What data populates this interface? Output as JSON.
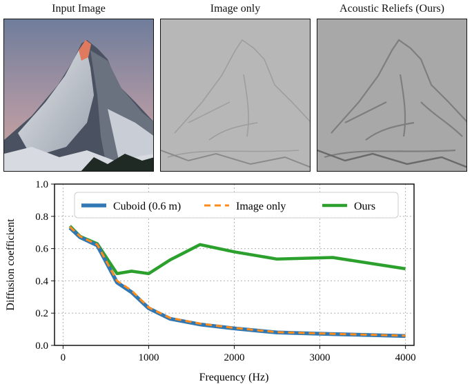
{
  "panels": [
    {
      "title": "Input Image"
    },
    {
      "title": "Image only"
    },
    {
      "title": "Acoustic Reliefs (Ours)"
    }
  ],
  "colors": {
    "cuboid": "#2f78b4",
    "image_only": "#ff8c1a",
    "ours": "#2ca02c",
    "sky_top": "#7d8aa6",
    "sky_bottom": "#cfa6a0",
    "peak_glow": "#e07a5f",
    "relief_light": "#b4b4b4",
    "relief_ours": "#9a9a9a"
  },
  "chart_data": {
    "type": "line",
    "xlabel": "Frequency (Hz)",
    "ylabel": "Diffusion coefficient",
    "xlim": [
      -100,
      4100
    ],
    "ylim": [
      0,
      1.0
    ],
    "xticks": [
      0,
      1000,
      2000,
      3000,
      4000
    ],
    "yticks": [
      0.0,
      0.2,
      0.4,
      0.6,
      0.8,
      1.0
    ],
    "grid": true,
    "legend_position": "top",
    "series": [
      {
        "name": "Cuboid (0.6 m)",
        "style": "solid",
        "x": [
          80,
          200,
          400,
          630,
          800,
          1000,
          1250,
          1600,
          2000,
          2500,
          3150,
          4000
        ],
        "y": [
          0.73,
          0.67,
          0.62,
          0.39,
          0.33,
          0.23,
          0.165,
          0.13,
          0.105,
          0.08,
          0.07,
          0.058
        ]
      },
      {
        "name": "Image only",
        "style": "dashed",
        "x": [
          80,
          200,
          400,
          630,
          800,
          1000,
          1250,
          1600,
          2000,
          2500,
          3150,
          4000
        ],
        "y": [
          0.735,
          0.675,
          0.625,
          0.4,
          0.34,
          0.235,
          0.17,
          0.135,
          0.108,
          0.082,
          0.072,
          0.06
        ]
      },
      {
        "name": "Ours",
        "style": "solid",
        "x": [
          80,
          200,
          400,
          630,
          800,
          1000,
          1250,
          1600,
          2000,
          2500,
          3150,
          4000
        ],
        "y": [
          0.74,
          0.675,
          0.63,
          0.445,
          0.46,
          0.445,
          0.53,
          0.625,
          0.58,
          0.535,
          0.545,
          0.475
        ]
      }
    ]
  }
}
